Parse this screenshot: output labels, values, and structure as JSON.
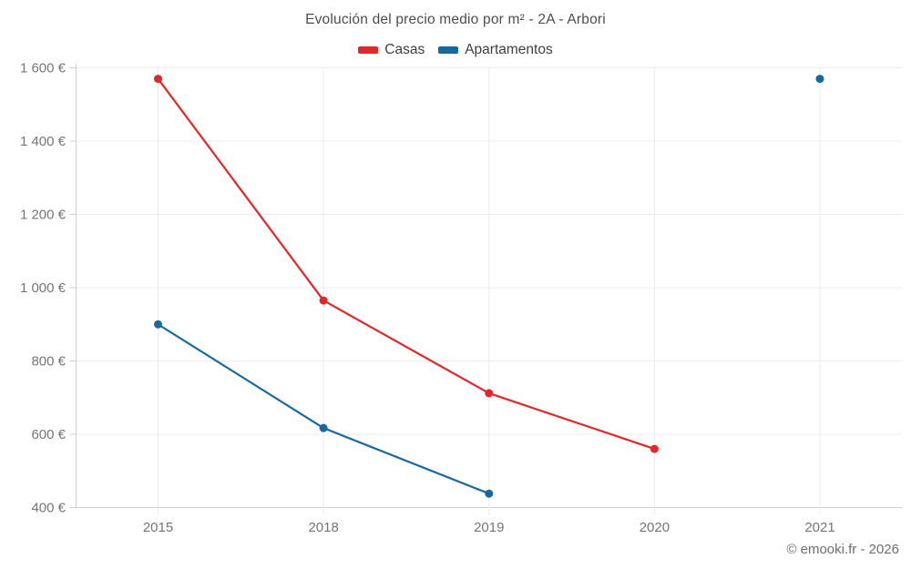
{
  "chart_data": {
    "type": "line",
    "title": "Evolución del precio medio por m² - 2A - Arbori",
    "categories": [
      "2015",
      "2018",
      "2019",
      "2020",
      "2021"
    ],
    "series": [
      {
        "name": "Casas",
        "color": "#e0282b",
        "values": [
          1570,
          965,
          712,
          560,
          null
        ]
      },
      {
        "name": "Apartamentos",
        "color": "#17699f",
        "values": [
          900,
          617,
          438,
          null,
          1570
        ]
      }
    ],
    "ylim": [
      400,
      1600
    ],
    "ytick_step": 200,
    "ytick_labels": [
      "400 €",
      "600 €",
      "800 €",
      "1 000 €",
      "1 200 €",
      "1 400 €",
      "1 600 €"
    ],
    "grid": true,
    "legend_position": "top",
    "axis_color": "#cfcfcf",
    "grid_color": "#ececec",
    "tick_label_color": "#757575",
    "attribution": "© emooki.fr - 2026"
  }
}
